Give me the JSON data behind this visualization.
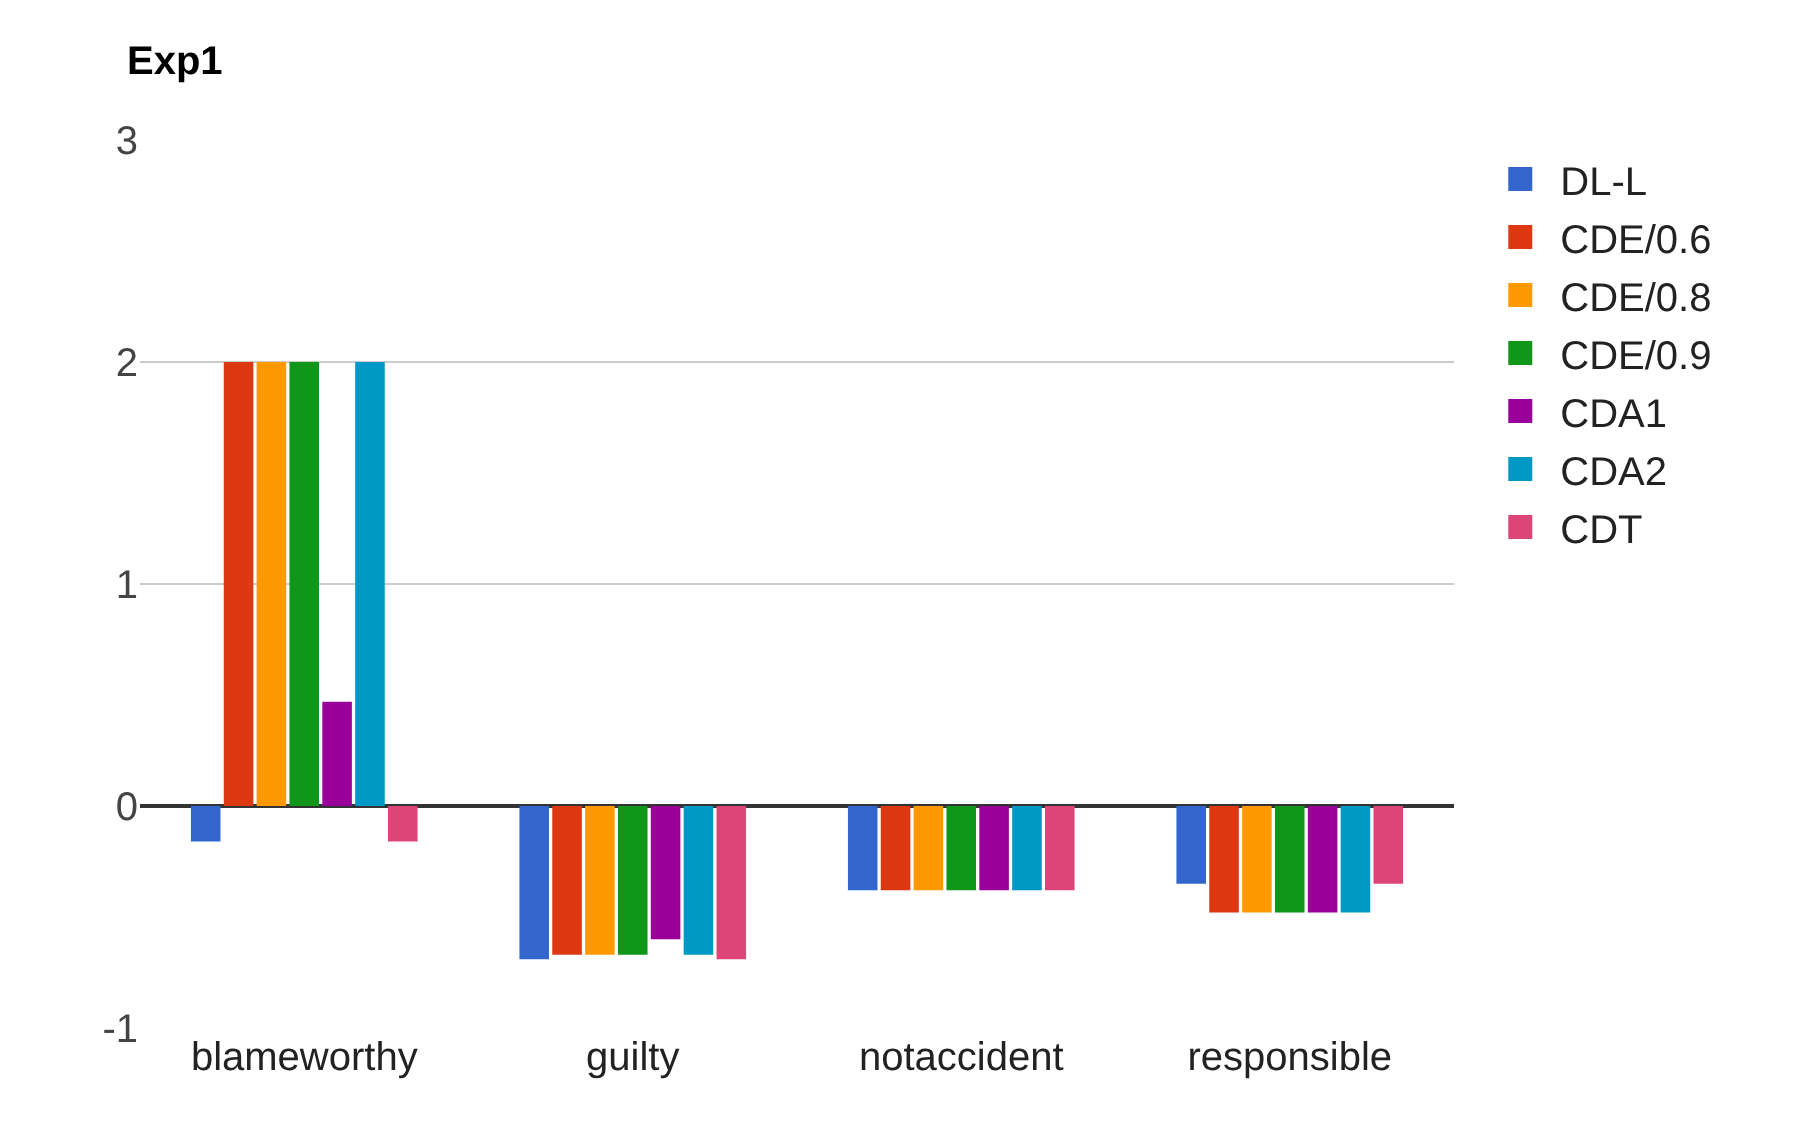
{
  "chart_data": {
    "type": "bar",
    "title": "Exp1",
    "categories": [
      "blameworthy",
      "guilty",
      "notaccident",
      "responsible"
    ],
    "series": [
      {
        "name": "DL-L",
        "color": "#3366cc",
        "values": [
          -0.16,
          -0.69,
          -0.38,
          -0.35
        ]
      },
      {
        "name": "CDE/0.6",
        "color": "#dc3912",
        "values": [
          2,
          -0.67,
          -0.38,
          -0.48
        ]
      },
      {
        "name": "CDE/0.8",
        "color": "#ff9900",
        "values": [
          2,
          -0.67,
          -0.38,
          -0.48
        ]
      },
      {
        "name": "CDE/0.9",
        "color": "#109618",
        "values": [
          2,
          -0.67,
          -0.38,
          -0.48
        ]
      },
      {
        "name": "CDA1",
        "color": "#990099",
        "values": [
          0.47,
          -0.6,
          -0.38,
          -0.48
        ]
      },
      {
        "name": "CDA2",
        "color": "#0099c6",
        "values": [
          2,
          -0.67,
          -0.38,
          -0.48
        ]
      },
      {
        "name": "CDT",
        "color": "#dd4477",
        "values": [
          -0.16,
          -0.69,
          -0.38,
          -0.35
        ]
      }
    ],
    "ylim": [
      -1,
      3
    ],
    "yticks": [
      -1,
      0,
      1,
      2,
      3
    ],
    "grid": "y",
    "legend": "top right"
  }
}
